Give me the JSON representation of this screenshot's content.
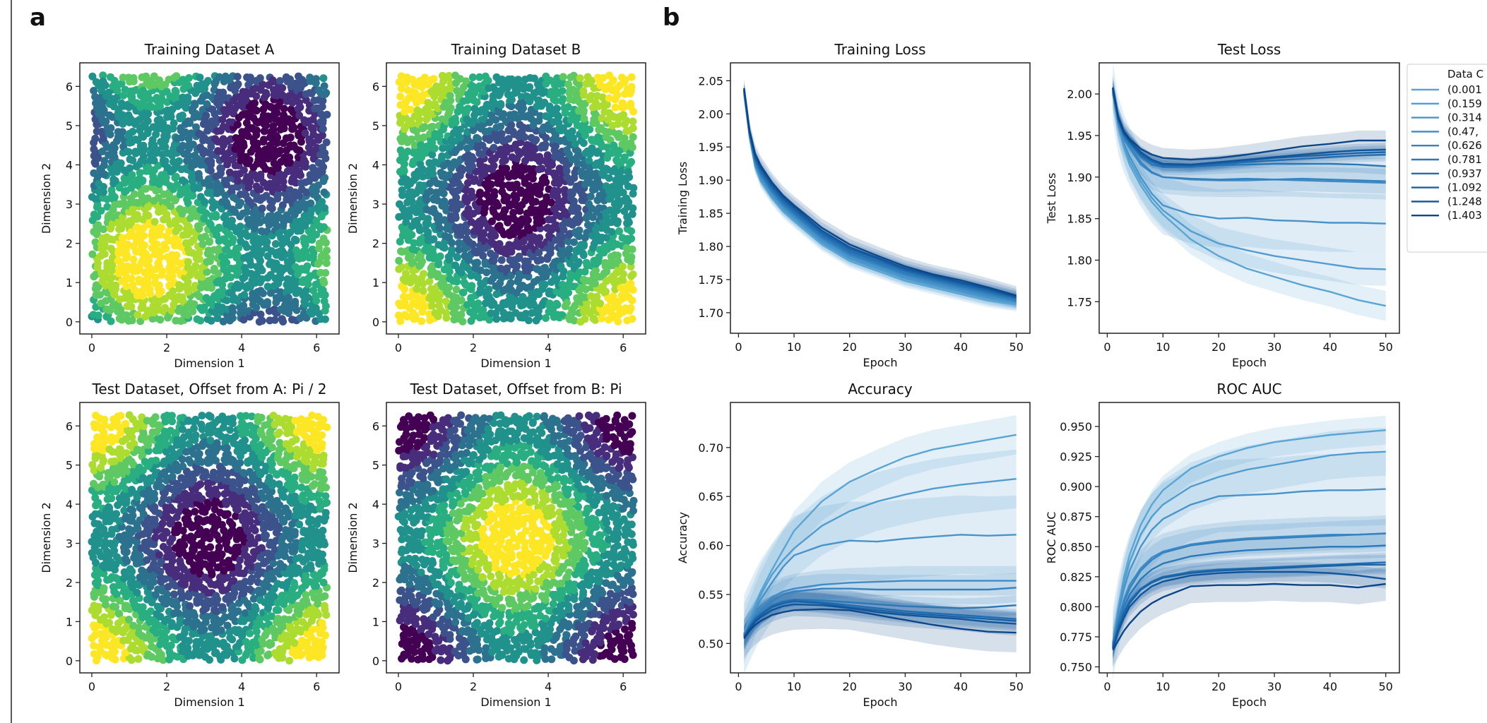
{
  "panels": {
    "a": "a",
    "b": "b"
  },
  "viridis": [
    "#440154",
    "#472d7b",
    "#3b528b",
    "#2c728e",
    "#21918c",
    "#28ae80",
    "#5ec962",
    "#addc30",
    "#fde725"
  ],
  "series_colors": [
    "#5aa5d3",
    "#519dcf",
    "#4894ca",
    "#3f8bc5",
    "#3582bf",
    "#2b78b8",
    "#226db0",
    "#1962a6",
    "#10549a",
    "#0b4689"
  ],
  "legend": {
    "title": "Data C",
    "entries": [
      "(0.001",
      "(0.159",
      "(0.314",
      "(0.47,",
      "(0.626",
      "(0.781",
      "(0.937",
      "(1.092",
      "(1.248",
      "(1.403"
    ]
  },
  "chart_data": [
    {
      "type": "scatter",
      "title": "Training Dataset A",
      "xlabel": "Dimension 1",
      "ylabel": "Dimension 2",
      "pattern": "sin(x)+sin(y)",
      "xticks": [
        "0",
        "2",
        "4",
        "6"
      ],
      "yticks": [
        "0",
        "1",
        "2",
        "3",
        "4",
        "5",
        "6"
      ],
      "xlim": [
        -0.32,
        6.6
      ],
      "ylim": [
        -0.31,
        6.6
      ]
    },
    {
      "type": "scatter",
      "title": "Training Dataset B",
      "xlabel": "Dimension 1",
      "ylabel": "Dimension 2",
      "pattern": "cos(x)+cos(y)",
      "xticks": [
        "0",
        "2",
        "4",
        "6"
      ],
      "yticks": [
        "0",
        "1",
        "2",
        "3",
        "4",
        "5",
        "6"
      ],
      "xlim": [
        -0.32,
        6.6
      ],
      "ylim": [
        -0.31,
        6.6
      ]
    },
    {
      "type": "scatter",
      "title": "Test Dataset, Offset from A: Pi / 2",
      "xlabel": "Dimension 1",
      "ylabel": "Dimension 2",
      "pattern": "cos(x)+cos(y)",
      "xticks": [
        "0",
        "2",
        "4",
        "6"
      ],
      "yticks": [
        "0",
        "1",
        "2",
        "3",
        "4",
        "5",
        "6"
      ],
      "xlim": [
        -0.32,
        6.6
      ],
      "ylim": [
        -0.31,
        6.6
      ]
    },
    {
      "type": "scatter",
      "title": "Test Dataset, Offset from B: Pi",
      "xlabel": "Dimension 1",
      "ylabel": "Dimension 2",
      "pattern": "-cos(x)-cos(y)",
      "xticks": [
        "0",
        "2",
        "4",
        "6"
      ],
      "yticks": [
        "0",
        "1",
        "2",
        "3",
        "4",
        "5",
        "6"
      ],
      "xlim": [
        -0.32,
        6.6
      ],
      "ylim": [
        -0.31,
        6.6
      ]
    },
    {
      "type": "line",
      "title": "Training Loss",
      "xlabel": "Epoch",
      "ylabel": "Training Loss",
      "xlim": [
        -1.45,
        52.45
      ],
      "ylim": [
        1.669,
        2.077
      ],
      "xticks": [
        "0",
        "10",
        "20",
        "30",
        "40",
        "50"
      ],
      "yticks": [
        "1.70",
        "1.75",
        "1.80",
        "1.85",
        "1.90",
        "1.95",
        "2.00",
        "2.05"
      ],
      "x": [
        1,
        2,
        3,
        4,
        6,
        8,
        10,
        15,
        20,
        25,
        30,
        35,
        40,
        45,
        50
      ],
      "series": [
        {
          "values": [
            2.03,
            1.965,
            1.92,
            1.898,
            1.873,
            1.853,
            1.838,
            1.803,
            1.778,
            1.763,
            1.748,
            1.738,
            1.728,
            1.718,
            1.712
          ],
          "std": 0.01
        },
        {
          "values": [
            2.032,
            1.966,
            1.922,
            1.901,
            1.876,
            1.856,
            1.841,
            1.806,
            1.781,
            1.766,
            1.751,
            1.741,
            1.731,
            1.721,
            1.714
          ],
          "std": 0.01
        },
        {
          "values": [
            2.033,
            1.967,
            1.924,
            1.903,
            1.878,
            1.858,
            1.843,
            1.808,
            1.783,
            1.768,
            1.753,
            1.743,
            1.733,
            1.723,
            1.716
          ],
          "std": 0.01
        },
        {
          "values": [
            2.034,
            1.968,
            1.926,
            1.906,
            1.881,
            1.861,
            1.846,
            1.811,
            1.786,
            1.771,
            1.756,
            1.746,
            1.736,
            1.726,
            1.717
          ],
          "std": 0.01
        },
        {
          "values": [
            2.035,
            1.969,
            1.928,
            1.908,
            1.883,
            1.863,
            1.848,
            1.813,
            1.788,
            1.773,
            1.758,
            1.748,
            1.738,
            1.728,
            1.718
          ],
          "std": 0.01
        },
        {
          "values": [
            2.035,
            1.97,
            1.93,
            1.91,
            1.885,
            1.865,
            1.85,
            1.815,
            1.79,
            1.775,
            1.76,
            1.75,
            1.74,
            1.73,
            1.72
          ],
          "std": 0.01
        },
        {
          "values": [
            2.036,
            1.971,
            1.932,
            1.913,
            1.888,
            1.868,
            1.853,
            1.818,
            1.793,
            1.778,
            1.763,
            1.752,
            1.742,
            1.732,
            1.722
          ],
          "std": 0.01
        },
        {
          "values": [
            2.037,
            1.972,
            1.934,
            1.916,
            1.891,
            1.871,
            1.856,
            1.821,
            1.796,
            1.781,
            1.765,
            1.754,
            1.744,
            1.734,
            1.723
          ],
          "std": 0.01
        },
        {
          "values": [
            2.038,
            1.973,
            1.936,
            1.919,
            1.894,
            1.874,
            1.859,
            1.824,
            1.799,
            1.783,
            1.767,
            1.756,
            1.746,
            1.736,
            1.724
          ],
          "std": 0.012
        },
        {
          "values": [
            2.039,
            1.975,
            1.94,
            1.922,
            1.897,
            1.877,
            1.862,
            1.828,
            1.803,
            1.786,
            1.77,
            1.758,
            1.749,
            1.738,
            1.726
          ],
          "std": 0.014
        }
      ]
    },
    {
      "type": "line",
      "title": "Test Loss",
      "xlabel": "Epoch",
      "ylabel": "Test Loss",
      "xlim": [
        -1.45,
        52.45
      ],
      "ylim": [
        1.712,
        2.0375
      ],
      "xticks": [
        "0",
        "10",
        "20",
        "30",
        "40",
        "50"
      ],
      "yticks": [
        "1.75",
        "1.80",
        "1.85",
        "1.90",
        "1.95",
        "2.00"
      ],
      "x": [
        1,
        2,
        3,
        4,
        6,
        8,
        10,
        15,
        20,
        25,
        30,
        35,
        40,
        45,
        50
      ],
      "series": [
        {
          "values": [
            2.0,
            1.96,
            1.935,
            1.915,
            1.89,
            1.87,
            1.855,
            1.825,
            1.805,
            1.79,
            1.78,
            1.77,
            1.762,
            1.752,
            1.745
          ],
          "std": 0.018
        },
        {
          "values": [
            2.0,
            1.962,
            1.938,
            1.92,
            1.895,
            1.875,
            1.86,
            1.835,
            1.82,
            1.812,
            1.805,
            1.8,
            1.795,
            1.79,
            1.789
          ],
          "std": 0.02
        },
        {
          "values": [
            2.002,
            1.962,
            1.94,
            1.925,
            1.9,
            1.88,
            1.866,
            1.855,
            1.85,
            1.851,
            1.848,
            1.847,
            1.845,
            1.845,
            1.844
          ],
          "std": 0.035
        },
        {
          "values": [
            2.003,
            1.965,
            1.945,
            1.935,
            1.915,
            1.905,
            1.9,
            1.897,
            1.896,
            1.896,
            1.897,
            1.896,
            1.895,
            1.894,
            1.893
          ],
          "std": 0.02
        },
        {
          "values": [
            2.004,
            1.966,
            1.947,
            1.937,
            1.918,
            1.906,
            1.9,
            1.898,
            1.897,
            1.898,
            1.897,
            1.898,
            1.897,
            1.896,
            1.895
          ],
          "std": 0.015
        },
        {
          "values": [
            2.005,
            1.968,
            1.95,
            1.94,
            1.925,
            1.915,
            1.912,
            1.912,
            1.914,
            1.915,
            1.916,
            1.916,
            1.916,
            1.915,
            1.913
          ],
          "std": 0.01
        },
        {
          "values": [
            2.006,
            1.969,
            1.951,
            1.942,
            1.926,
            1.918,
            1.913,
            1.913,
            1.915,
            1.918,
            1.92,
            1.922,
            1.924,
            1.926,
            1.927
          ],
          "std": 0.008
        },
        {
          "values": [
            2.006,
            1.97,
            1.952,
            1.943,
            1.928,
            1.92,
            1.915,
            1.914,
            1.917,
            1.92,
            1.923,
            1.925,
            1.927,
            1.929,
            1.93
          ],
          "std": 0.008
        },
        {
          "values": [
            2.007,
            1.97,
            1.953,
            1.944,
            1.93,
            1.921,
            1.916,
            1.915,
            1.918,
            1.921,
            1.924,
            1.927,
            1.93,
            1.932,
            1.933
          ],
          "std": 0.008
        },
        {
          "values": [
            2.008,
            1.972,
            1.955,
            1.946,
            1.934,
            1.927,
            1.923,
            1.921,
            1.923,
            1.927,
            1.932,
            1.937,
            1.94,
            1.944,
            1.944
          ],
          "std": 0.012
        }
      ]
    },
    {
      "type": "line",
      "title": "Accuracy",
      "xlabel": "Epoch",
      "ylabel": "Accuracy",
      "xlim": [
        -1.45,
        52.45
      ],
      "ylim": [
        0.47,
        0.746
      ],
      "xticks": [
        "0",
        "10",
        "20",
        "30",
        "40",
        "50"
      ],
      "yticks": [
        "0.50",
        "0.55",
        "0.60",
        "0.65",
        "0.70"
      ],
      "x": [
        1,
        2,
        3,
        4,
        6,
        8,
        10,
        15,
        20,
        25,
        30,
        35,
        40,
        45,
        50
      ],
      "series": [
        {
          "values": [
            0.51,
            0.525,
            0.54,
            0.553,
            0.575,
            0.595,
            0.615,
            0.645,
            0.665,
            0.678,
            0.69,
            0.698,
            0.703,
            0.708,
            0.713
          ],
          "std": 0.02
        },
        {
          "values": [
            0.51,
            0.523,
            0.537,
            0.55,
            0.57,
            0.585,
            0.597,
            0.62,
            0.635,
            0.645,
            0.652,
            0.658,
            0.662,
            0.665,
            0.668
          ],
          "std": 0.03
        },
        {
          "values": [
            0.509,
            0.522,
            0.534,
            0.545,
            0.562,
            0.578,
            0.59,
            0.6,
            0.605,
            0.604,
            0.607,
            0.609,
            0.611,
            0.61,
            0.611
          ],
          "std": 0.04
        },
        {
          "values": [
            0.509,
            0.52,
            0.53,
            0.537,
            0.547,
            0.553,
            0.556,
            0.56,
            0.562,
            0.563,
            0.564,
            0.564,
            0.564,
            0.564,
            0.564
          ],
          "std": 0.015
        },
        {
          "values": [
            0.508,
            0.519,
            0.528,
            0.534,
            0.543,
            0.55,
            0.553,
            0.556,
            0.556,
            0.555,
            0.555,
            0.555,
            0.555,
            0.555,
            0.557
          ],
          "std": 0.015
        },
        {
          "values": [
            0.508,
            0.518,
            0.526,
            0.531,
            0.539,
            0.543,
            0.545,
            0.544,
            0.542,
            0.54,
            0.538,
            0.537,
            0.536,
            0.537,
            0.539
          ],
          "std": 0.01
        },
        {
          "values": [
            0.507,
            0.517,
            0.525,
            0.53,
            0.538,
            0.542,
            0.544,
            0.542,
            0.539,
            0.536,
            0.533,
            0.531,
            0.529,
            0.527,
            0.525
          ],
          "std": 0.01
        },
        {
          "values": [
            0.507,
            0.516,
            0.524,
            0.529,
            0.537,
            0.541,
            0.543,
            0.541,
            0.537,
            0.534,
            0.531,
            0.529,
            0.527,
            0.525,
            0.523
          ],
          "std": 0.01
        },
        {
          "values": [
            0.506,
            0.515,
            0.522,
            0.527,
            0.534,
            0.538,
            0.54,
            0.539,
            0.536,
            0.532,
            0.529,
            0.527,
            0.525,
            0.522,
            0.52
          ],
          "std": 0.012
        },
        {
          "values": [
            0.505,
            0.513,
            0.519,
            0.523,
            0.529,
            0.532,
            0.534,
            0.535,
            0.534,
            0.529,
            0.524,
            0.519,
            0.515,
            0.512,
            0.511
          ],
          "std": 0.02
        }
      ]
    },
    {
      "type": "line",
      "title": "ROC AUC",
      "xlabel": "Epoch",
      "ylabel": "ROC AUC",
      "xlim": [
        -1.45,
        52.45
      ],
      "ylim": [
        0.745,
        0.97
      ],
      "xticks": [
        "0",
        "10",
        "20",
        "30",
        "40",
        "50"
      ],
      "yticks": [
        "0.750",
        "0.775",
        "0.800",
        "0.825",
        "0.850",
        "0.875",
        "0.900",
        "0.925",
        "0.950"
      ],
      "x": [
        1,
        2,
        3,
        4,
        6,
        8,
        10,
        15,
        20,
        25,
        30,
        35,
        40,
        45,
        50
      ],
      "series": [
        {
          "values": [
            0.77,
            0.8,
            0.825,
            0.843,
            0.868,
            0.885,
            0.897,
            0.915,
            0.925,
            0.932,
            0.937,
            0.94,
            0.943,
            0.945,
            0.947
          ],
          "std": 0.012
        },
        {
          "values": [
            0.77,
            0.798,
            0.82,
            0.837,
            0.86,
            0.875,
            0.885,
            0.9,
            0.908,
            0.914,
            0.918,
            0.922,
            0.926,
            0.928,
            0.929
          ],
          "std": 0.02
        },
        {
          "values": [
            0.769,
            0.795,
            0.815,
            0.83,
            0.85,
            0.864,
            0.873,
            0.885,
            0.892,
            0.893,
            0.894,
            0.896,
            0.897,
            0.897,
            0.898
          ],
          "std": 0.03
        },
        {
          "values": [
            0.768,
            0.79,
            0.806,
            0.818,
            0.832,
            0.841,
            0.846,
            0.852,
            0.855,
            0.857,
            0.858,
            0.859,
            0.86,
            0.86,
            0.861
          ],
          "std": 0.015
        },
        {
          "values": [
            0.768,
            0.789,
            0.804,
            0.815,
            0.83,
            0.839,
            0.845,
            0.851,
            0.854,
            0.856,
            0.857,
            0.858,
            0.859,
            0.86,
            0.861
          ],
          "std": 0.012
        },
        {
          "values": [
            0.767,
            0.786,
            0.8,
            0.81,
            0.823,
            0.831,
            0.836,
            0.842,
            0.845,
            0.847,
            0.848,
            0.849,
            0.85,
            0.85,
            0.851
          ],
          "std": 0.01
        },
        {
          "values": [
            0.766,
            0.783,
            0.796,
            0.805,
            0.815,
            0.821,
            0.825,
            0.829,
            0.831,
            0.832,
            0.833,
            0.834,
            0.835,
            0.836,
            0.837
          ],
          "std": 0.008
        },
        {
          "values": [
            0.766,
            0.782,
            0.794,
            0.803,
            0.814,
            0.82,
            0.824,
            0.828,
            0.83,
            0.831,
            0.832,
            0.833,
            0.834,
            0.835,
            0.835
          ],
          "std": 0.008
        },
        {
          "values": [
            0.765,
            0.78,
            0.791,
            0.8,
            0.81,
            0.817,
            0.821,
            0.826,
            0.828,
            0.829,
            0.829,
            0.829,
            0.828,
            0.826,
            0.823
          ],
          "std": 0.008
        },
        {
          "values": [
            0.764,
            0.772,
            0.78,
            0.786,
            0.796,
            0.803,
            0.808,
            0.817,
            0.818,
            0.818,
            0.819,
            0.818,
            0.818,
            0.816,
            0.819
          ],
          "std": 0.014
        }
      ]
    }
  ]
}
